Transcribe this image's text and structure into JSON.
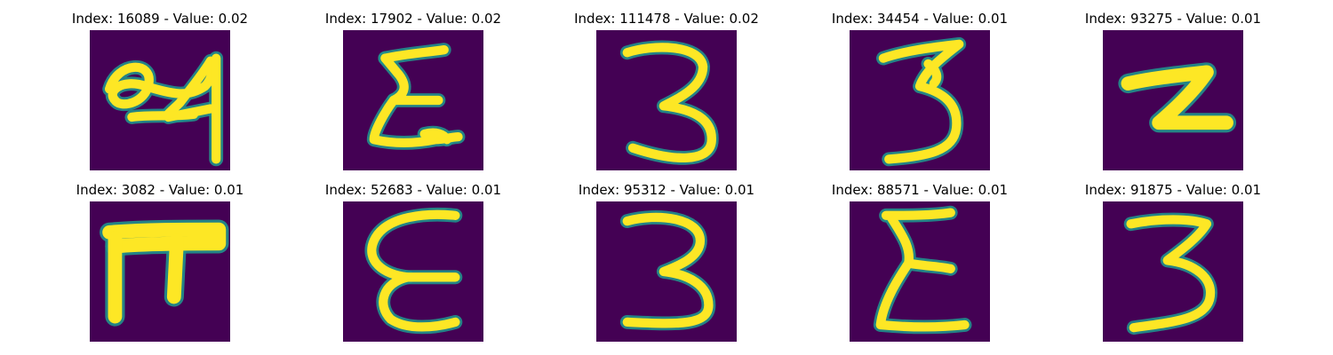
{
  "colors": {
    "background": "#440154",
    "ink": "#fde725",
    "edge": "#21918c"
  },
  "panels": [
    {
      "title": "Index: 16089 - Value: 0.02",
      "glyph": "24"
    },
    {
      "title": "Index: 17902 - Value: 0.02",
      "glyph": "sigma-e"
    },
    {
      "title": "Index: 111478 - Value: 0.02",
      "glyph": "3"
    },
    {
      "title": "Index: 34454 - Value: 0.01",
      "glyph": "3"
    },
    {
      "title": "Index: 93275 - Value: 0.01",
      "glyph": "z"
    },
    {
      "title": "Index: 3082 - Value: 0.01",
      "glyph": "pi"
    },
    {
      "title": "Index: 52683 - Value: 0.01",
      "glyph": "epsilon"
    },
    {
      "title": "Index: 95312 - Value: 0.01",
      "glyph": "3"
    },
    {
      "title": "Index: 88571 - Value: 0.01",
      "glyph": "sigma-e"
    },
    {
      "title": "Index: 91875 - Value: 0.01",
      "glyph": "3"
    }
  ]
}
